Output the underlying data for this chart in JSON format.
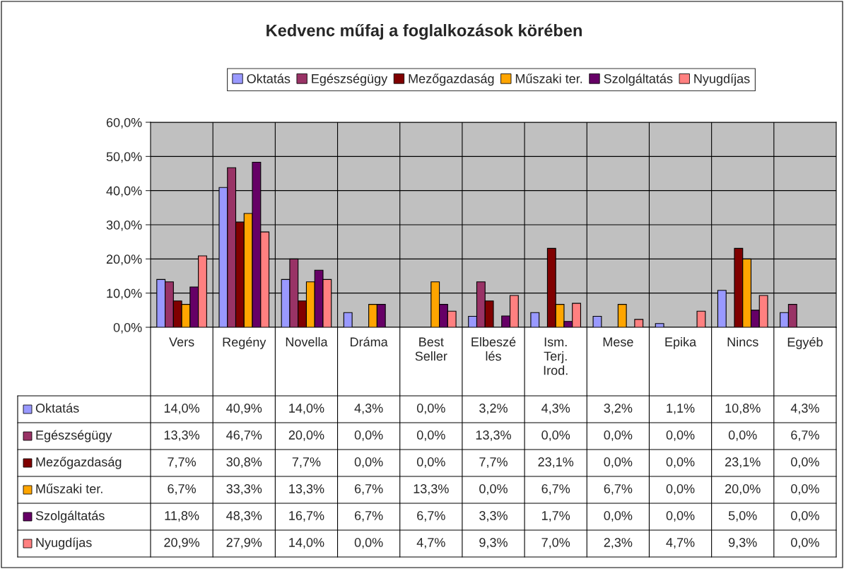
{
  "chart_data": {
    "type": "bar",
    "title": "Kedvenc műfaj a foglalkozások körében",
    "categories": [
      "Vers",
      "Regény",
      "Novella",
      "Dráma",
      "Best\nSeller",
      "Elbeszé\nlés",
      "Ism.\nTerj.\nIrod.",
      "Mese",
      "Epika",
      "Nincs",
      "Egyéb"
    ],
    "series": [
      {
        "name": "Oktatás",
        "color": "#9999ff",
        "values": [
          14.0,
          40.9,
          14.0,
          4.3,
          0.0,
          3.2,
          4.3,
          3.2,
          1.1,
          10.8,
          4.3
        ],
        "value_labels": [
          "14,0%",
          "40,9%",
          "14,0%",
          "4,3%",
          "0,0%",
          "3,2%",
          "4,3%",
          "3,2%",
          "1,1%",
          "10,8%",
          "4,3%"
        ]
      },
      {
        "name": "Egészségügy",
        "color": "#993366",
        "values": [
          13.3,
          46.7,
          20.0,
          0.0,
          0.0,
          13.3,
          0.0,
          0.0,
          0.0,
          0.0,
          6.7
        ],
        "value_labels": [
          "13,3%",
          "46,7%",
          "20,0%",
          "0,0%",
          "0,0%",
          "13,3%",
          "0,0%",
          "0,0%",
          "0,0%",
          "0,0%",
          "6,7%"
        ]
      },
      {
        "name": "Mezőgazdaság",
        "color": "#800000",
        "values": [
          7.7,
          30.8,
          7.7,
          0.0,
          0.0,
          7.7,
          23.1,
          0.0,
          0.0,
          23.1,
          0.0
        ],
        "value_labels": [
          "7,7%",
          "30,8%",
          "7,7%",
          "0,0%",
          "0,0%",
          "7,7%",
          "23,1%",
          "0,0%",
          "0,0%",
          "23,1%",
          "0,0%"
        ]
      },
      {
        "name": "Műszaki ter.",
        "color": "#ffa500",
        "values": [
          6.7,
          33.3,
          13.3,
          6.7,
          13.3,
          0.0,
          6.7,
          6.7,
          0.0,
          20.0,
          0.0
        ],
        "value_labels": [
          "6,7%",
          "33,3%",
          "13,3%",
          "6,7%",
          "13,3%",
          "0,0%",
          "6,7%",
          "6,7%",
          "0,0%",
          "20,0%",
          "0,0%"
        ]
      },
      {
        "name": "Szolgáltatás",
        "color": "#660066",
        "values": [
          11.8,
          48.3,
          16.7,
          6.7,
          6.7,
          3.3,
          1.7,
          0.0,
          0.0,
          5.0,
          0.0
        ],
        "value_labels": [
          "11,8%",
          "48,3%",
          "16,7%",
          "6,7%",
          "6,7%",
          "3,3%",
          "1,7%",
          "0,0%",
          "0,0%",
          "5,0%",
          "0,0%"
        ]
      },
      {
        "name": "Nyugdíjas",
        "color": "#ff8080",
        "values": [
          20.9,
          27.9,
          14.0,
          0.0,
          4.7,
          9.3,
          7.0,
          2.3,
          4.7,
          9.3,
          0.0
        ],
        "value_labels": [
          "20,9%",
          "27,9%",
          "14,0%",
          "0,0%",
          "4,7%",
          "9,3%",
          "7,0%",
          "2,3%",
          "4,7%",
          "9,3%",
          "0,0%"
        ]
      }
    ],
    "ylim": [
      0,
      60
    ],
    "yticks": [
      {
        "value": 0,
        "label": "0,0%"
      },
      {
        "value": 10,
        "label": "10,0%"
      },
      {
        "value": 20,
        "label": "20,0%"
      },
      {
        "value": 30,
        "label": "30,0%"
      },
      {
        "value": 40,
        "label": "40,0%"
      },
      {
        "value": 50,
        "label": "50,0%"
      },
      {
        "value": 60,
        "label": "60,0%"
      }
    ],
    "grid": "y",
    "legend": "top"
  }
}
